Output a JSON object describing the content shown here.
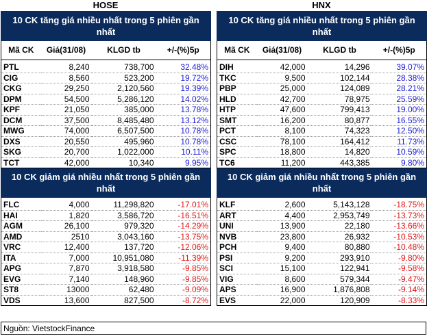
{
  "hose": {
    "title": "HOSE",
    "gain_header": "10 CK tăng giá nhiều nhất trong 5 phiên gần nhất",
    "loss_header": "10 CK giảm giá nhiều nhất trong 5 phiên gần nhất",
    "columns": [
      "Mã CK",
      "Giá(31/08)",
      "KLGD tb",
      "+/-(%)5p"
    ],
    "gainers": [
      [
        "PTL",
        "8,240",
        "738,700",
        "32.48%"
      ],
      [
        "CIG",
        "8,560",
        "523,200",
        "19.72%"
      ],
      [
        "CKG",
        "29,250",
        "2,120,560",
        "19.39%"
      ],
      [
        "DPM",
        "54,500",
        "5,286,120",
        "14.02%"
      ],
      [
        "KPF",
        "21,050",
        "385,000",
        "13.78%"
      ],
      [
        "DCM",
        "37,500",
        "8,485,480",
        "13.12%"
      ],
      [
        "MWG",
        "74,000",
        "6,507,500",
        "10.78%"
      ],
      [
        "DXS",
        "20,550",
        "495,960",
        "10.78%"
      ],
      [
        "SKG",
        "20,700",
        "1,022,000",
        "10.11%"
      ],
      [
        "TCT",
        "42,000",
        "10,340",
        "9.95%"
      ]
    ],
    "losers": [
      [
        "FLC",
        "4,000",
        "11,298,820",
        "-17.01%"
      ],
      [
        "HAI",
        "1,820",
        "3,586,720",
        "-16.51%"
      ],
      [
        "AGM",
        "26,100",
        "979,320",
        "-14.29%"
      ],
      [
        "AMD",
        "2510",
        "3,043,160",
        "-13.75%"
      ],
      [
        "VRC",
        "12,400",
        "137,720",
        "-12.06%"
      ],
      [
        "ITA",
        "7,000",
        "10,951,080",
        "-11.39%"
      ],
      [
        "APG",
        "7,870",
        "3,918,580",
        "-9.85%"
      ],
      [
        "EVG",
        "7,140",
        "148,960",
        "-9.85%"
      ],
      [
        "ST8",
        "13000",
        "62,480",
        "-9.09%"
      ],
      [
        "VDS",
        "13,600",
        "827,500",
        "-8.72%"
      ]
    ]
  },
  "hnx": {
    "title": "HNX",
    "gain_header": "10 CK tăng giá nhiều nhất trong 5 phiên gần nhất",
    "loss_header": "10 CK giảm giá nhiều nhất trong 5 phiên gần nhất",
    "columns": [
      "Mã CK",
      "Giá(31/08)",
      "KLGD tb",
      "+/-(%)5p"
    ],
    "gainers": [
      [
        "DIH",
        "42,000",
        "14,296",
        "39.07%"
      ],
      [
        "TKC",
        "9,500",
        "102,144",
        "28.38%"
      ],
      [
        "PBP",
        "25,000",
        "124,089",
        "28.21%"
      ],
      [
        "HLD",
        "42,700",
        "78,975",
        "25.59%"
      ],
      [
        "HTP",
        "47,600",
        "799,413",
        "19.00%"
      ],
      [
        "SMT",
        "16,200",
        "80,877",
        "16.55%"
      ],
      [
        "PCT",
        "8,100",
        "74,323",
        "12.50%"
      ],
      [
        "CSC",
        "78,100",
        "164,412",
        "11.73%"
      ],
      [
        "SPC",
        "18,800",
        "14,820",
        "10.59%"
      ],
      [
        "TC6",
        "11,200",
        "443,385",
        "9.80%"
      ]
    ],
    "losers": [
      [
        "KLF",
        "2,600",
        "5,143,128",
        "-18.75%"
      ],
      [
        "ART",
        "4,400",
        "2,953,749",
        "-13.73%"
      ],
      [
        "UNI",
        "13,900",
        "22,180",
        "-13.66%"
      ],
      [
        "NVB",
        "23,800",
        "26,932",
        "-10.53%"
      ],
      [
        "PCH",
        "9,400",
        "80,880",
        "-10.48%"
      ],
      [
        "PSI",
        "9,200",
        "293,910",
        "-9.80%"
      ],
      [
        "SCI",
        "15,100",
        "122,941",
        "-9.58%"
      ],
      [
        "VIG",
        "8,600",
        "579,344",
        "-9.47%"
      ],
      [
        "APS",
        "16,900",
        "1,876,808",
        "-9.14%"
      ],
      [
        "EVS",
        "22,000",
        "120,909",
        "-8.33%"
      ]
    ]
  },
  "source": "Nguồn: VietstockFinance"
}
